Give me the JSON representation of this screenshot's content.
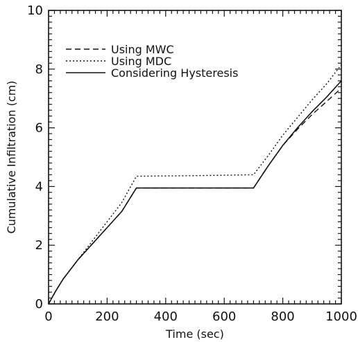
{
  "chart_data": {
    "type": "line",
    "title": "",
    "xlabel": "Time (sec)",
    "ylabel": "Cumulative Infiltration (cm)",
    "xlim": [
      0,
      1000
    ],
    "ylim": [
      0,
      10
    ],
    "x_ticks": [
      0,
      200,
      400,
      600,
      800,
      1000
    ],
    "x_tick_labels": [
      "0",
      "200",
      "400",
      "600",
      "800",
      "1000"
    ],
    "y_ticks": [
      0,
      2,
      4,
      6,
      8,
      10
    ],
    "y_tick_labels": [
      "0",
      "2",
      "4",
      "6",
      "8",
      "10"
    ],
    "grid": false,
    "legend_position": "top-left",
    "series": [
      {
        "name": "Using MWC",
        "style": "dashed",
        "points": [
          [
            0,
            0
          ],
          [
            25,
            0.45
          ],
          [
            50,
            0.85
          ],
          [
            100,
            1.5
          ],
          [
            150,
            2.05
          ],
          [
            200,
            2.6
          ],
          [
            250,
            3.15
          ],
          [
            300,
            3.95
          ],
          [
            500,
            3.95
          ],
          [
            700,
            3.95
          ],
          [
            750,
            4.7
          ],
          [
            800,
            5.4
          ],
          [
            850,
            5.95
          ],
          [
            900,
            6.45
          ],
          [
            950,
            6.9
          ],
          [
            1000,
            7.35
          ]
        ]
      },
      {
        "name": "Using MDC",
        "style": "dotted",
        "points": [
          [
            0,
            0
          ],
          [
            25,
            0.45
          ],
          [
            50,
            0.85
          ],
          [
            100,
            1.5
          ],
          [
            150,
            2.15
          ],
          [
            200,
            2.8
          ],
          [
            250,
            3.45
          ],
          [
            300,
            4.35
          ],
          [
            500,
            4.37
          ],
          [
            700,
            4.4
          ],
          [
            750,
            5.05
          ],
          [
            800,
            5.75
          ],
          [
            850,
            6.35
          ],
          [
            900,
            6.95
          ],
          [
            950,
            7.5
          ],
          [
            1000,
            8.15
          ]
        ]
      },
      {
        "name": "Considering Hysteresis",
        "style": "solid",
        "points": [
          [
            0,
            0
          ],
          [
            25,
            0.45
          ],
          [
            50,
            0.85
          ],
          [
            100,
            1.5
          ],
          [
            150,
            2.05
          ],
          [
            200,
            2.6
          ],
          [
            250,
            3.15
          ],
          [
            300,
            3.95
          ],
          [
            500,
            3.95
          ],
          [
            700,
            3.95
          ],
          [
            750,
            4.7
          ],
          [
            800,
            5.4
          ],
          [
            850,
            6.0
          ],
          [
            900,
            6.55
          ],
          [
            950,
            7.05
          ],
          [
            1000,
            7.6
          ]
        ]
      }
    ]
  }
}
